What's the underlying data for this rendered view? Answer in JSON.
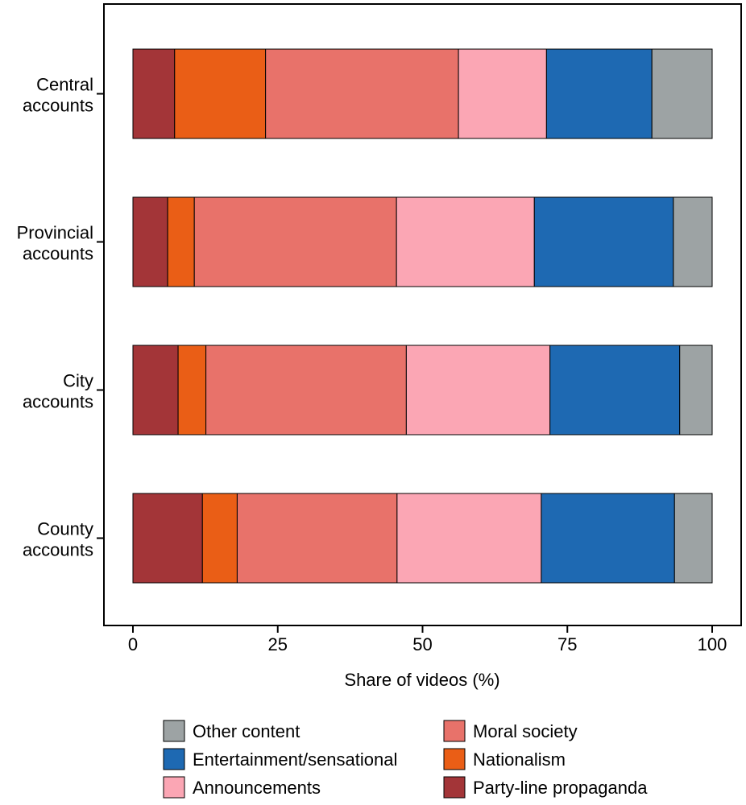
{
  "chart_data": {
    "type": "bar",
    "orientation": "horizontal",
    "stacked": true,
    "title": "",
    "xlabel": "Share of videos (%)",
    "ylabel": "",
    "xlim": [
      0,
      100
    ],
    "x_ticks": [
      0,
      25,
      50,
      75,
      100
    ],
    "grid": false,
    "legend_position": "bottom",
    "categories": [
      [
        "Central",
        "accounts"
      ],
      [
        "Provincial",
        "accounts"
      ],
      [
        "City",
        "accounts"
      ],
      [
        "County",
        "accounts"
      ]
    ],
    "series": [
      {
        "name": "Party-line propaganda",
        "color": "#A33538",
        "values": [
          7.2,
          6.0,
          7.8,
          12.0
        ]
      },
      {
        "name": "Nationalism",
        "color": "#EA5E16",
        "values": [
          15.7,
          4.6,
          4.8,
          6.0
        ]
      },
      {
        "name": "Moral society",
        "color": "#E8726A",
        "values": [
          33.3,
          34.9,
          34.6,
          27.6
        ]
      },
      {
        "name": "Announcements",
        "color": "#FBA6B4",
        "values": [
          15.2,
          23.8,
          24.8,
          24.9
        ]
      },
      {
        "name": "Entertainment/sensational",
        "color": "#1E69B2",
        "values": [
          18.2,
          24.0,
          22.4,
          23.0
        ]
      },
      {
        "name": "Other content",
        "color": "#9DA3A4",
        "values": [
          10.4,
          6.7,
          5.6,
          6.5
        ]
      }
    ],
    "legend_order": [
      "Other content",
      "Moral society",
      "Entertainment/sensational",
      "Nationalism",
      "Announcements",
      "Party-line propaganda"
    ]
  }
}
